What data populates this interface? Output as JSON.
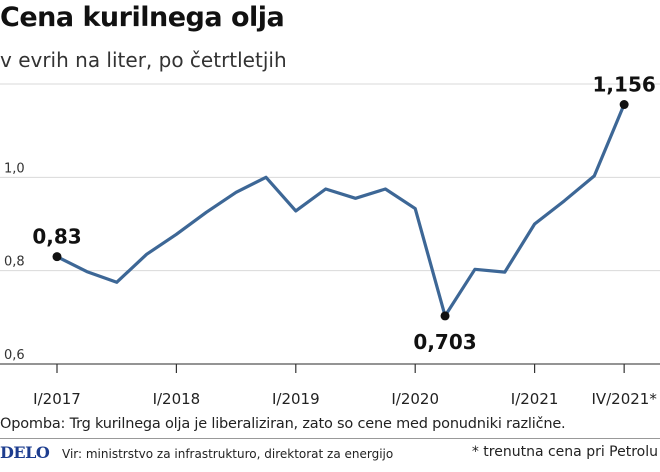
{
  "header": {
    "title": "Cena kurilnega olja",
    "subtitle": "v evrih na liter, po četrtletjih"
  },
  "chart_data": {
    "type": "line",
    "title": "Cena kurilnega olja",
    "subtitle": "v evrih na liter, po četrtletjih",
    "xlabel": "",
    "ylabel": "",
    "ylim": [
      0.6,
      1.2
    ],
    "yticks": [
      0.6,
      0.8,
      1.0
    ],
    "ytick_labels": [
      "0,6",
      "0,8",
      "1,0"
    ],
    "grid": true,
    "xtick_labels": [
      "I/2017",
      "I/2018",
      "I/2019",
      "I/2020",
      "I/2021",
      "IV/2021*"
    ],
    "xtick_positions": [
      0,
      4,
      8,
      12,
      16,
      19
    ],
    "series": [
      {
        "color": "#3d6796",
        "x": [
          0,
          1,
          2,
          3,
          4,
          5,
          6,
          7,
          8,
          9,
          10,
          11,
          12,
          13,
          14,
          15,
          16,
          17,
          18,
          19
        ],
        "values": [
          0.83,
          0.798,
          0.775,
          0.835,
          0.878,
          0.925,
          0.968,
          1.0,
          0.928,
          0.975,
          0.955,
          0.975,
          0.933,
          0.703,
          0.803,
          0.797,
          0.9,
          0.95,
          1.003,
          1.156
        ]
      }
    ],
    "annotations": [
      {
        "x": 0,
        "y": 0.83,
        "label": "0,83",
        "position": "above"
      },
      {
        "x": 13,
        "y": 0.703,
        "label": "0,703",
        "position": "below"
      },
      {
        "x": 19,
        "y": 1.156,
        "label": "1,156",
        "position": "above"
      }
    ]
  },
  "footer": {
    "note": "Opomba: Trg kurilnega olja je liberaliziran, zato so cene med ponudniki različne.",
    "logo": "DELO",
    "source": "Vir: ministrstvo za infrastrukturo, direktorat za energijo",
    "footnote": "* trenutna cena pri Petrolu"
  },
  "colors": {
    "line": "#3d6796",
    "grid": "#d9d9d9",
    "logo": "#1d3d8f"
  }
}
